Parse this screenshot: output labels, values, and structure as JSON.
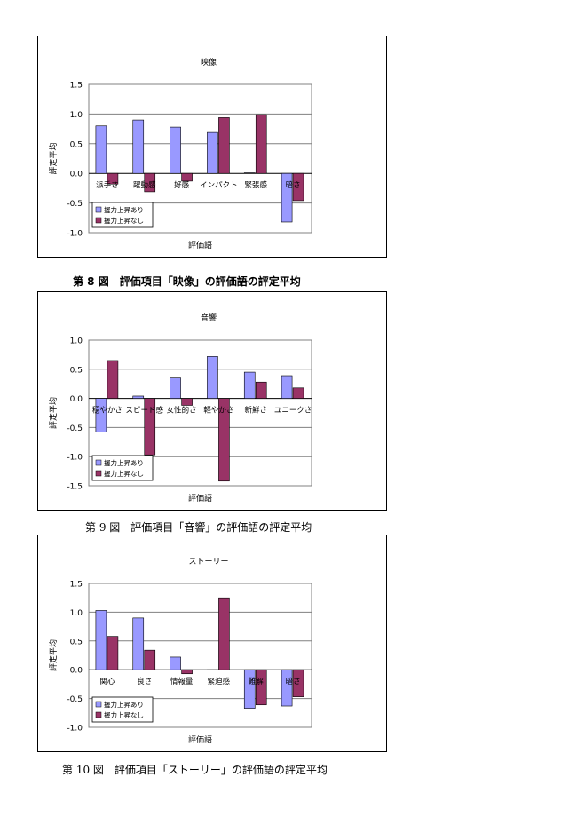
{
  "chart_data": [
    {
      "type": "bar",
      "title": "映像",
      "xlabel": "評価語",
      "ylabel": "評定平均",
      "ylim": [
        -1.0,
        1.5
      ],
      "yticks": [
        "1.5",
        "1.0",
        "0.5",
        "0.0",
        "-0.5",
        "-1.0"
      ],
      "grid": true,
      "legend": "bottom-left",
      "categories": [
        "派手さ",
        "躍動感",
        "好感",
        "インパクト",
        "緊張感",
        "暗さ"
      ],
      "series": [
        {
          "name": "握力上昇あり",
          "color": "#9999ff",
          "values": [
            0.8,
            0.9,
            0.78,
            0.69,
            0.01,
            -0.82
          ]
        },
        {
          "name": "握力上昇なし",
          "color": "#993366",
          "values": [
            -0.18,
            -0.31,
            -0.13,
            0.94,
            0.99,
            -0.46
          ]
        }
      ]
    },
    {
      "type": "bar",
      "title": "音響",
      "xlabel": "評価語",
      "ylabel": "評定平均",
      "ylim": [
        -1.5,
        1.0
      ],
      "yticks": [
        "1.0",
        "0.5",
        "0.0",
        "-0.5",
        "-1.0",
        "-1.5"
      ],
      "grid": true,
      "legend": "bottom-left",
      "categories": [
        "穏やかさ",
        "スピード感",
        "女性的さ",
        "軽やかさ",
        "新鮮さ",
        "ユニークさ"
      ],
      "series": [
        {
          "name": "握力上昇あり",
          "color": "#9999ff",
          "values": [
            -0.58,
            0.04,
            0.35,
            0.72,
            0.45,
            0.39
          ]
        },
        {
          "name": "握力上昇なし",
          "color": "#993366",
          "values": [
            0.65,
            -0.97,
            -0.12,
            -1.42,
            0.28,
            0.18
          ]
        }
      ]
    },
    {
      "type": "bar",
      "title": "ストーリー",
      "xlabel": "評価語",
      "ylabel": "評定平均",
      "ylim": [
        -1.0,
        1.5
      ],
      "yticks": [
        "1.5",
        "1.0",
        "0.5",
        "0.0",
        "-0.5",
        "-1.0"
      ],
      "grid": true,
      "legend": "bottom-left",
      "categories": [
        "関心",
        "良さ",
        "情報量",
        "緊迫感",
        "難解",
        "暗さ"
      ],
      "series": [
        {
          "name": "握力上昇あり",
          "color": "#9999ff",
          "values": [
            1.03,
            0.9,
            0.22,
            0.0,
            -0.67,
            -0.63
          ]
        },
        {
          "name": "握力上昇なし",
          "color": "#993366",
          "values": [
            0.58,
            0.34,
            -0.07,
            1.25,
            -0.61,
            -0.47
          ]
        }
      ]
    }
  ],
  "captions": [
    "第 8 図　評価項目「映像」の評価語の評定平均",
    "第 9 図　評価項目「音響」の評価語の評定平均",
    "第 10 図　評価項目「ストーリー」の評価語の評定平均"
  ]
}
